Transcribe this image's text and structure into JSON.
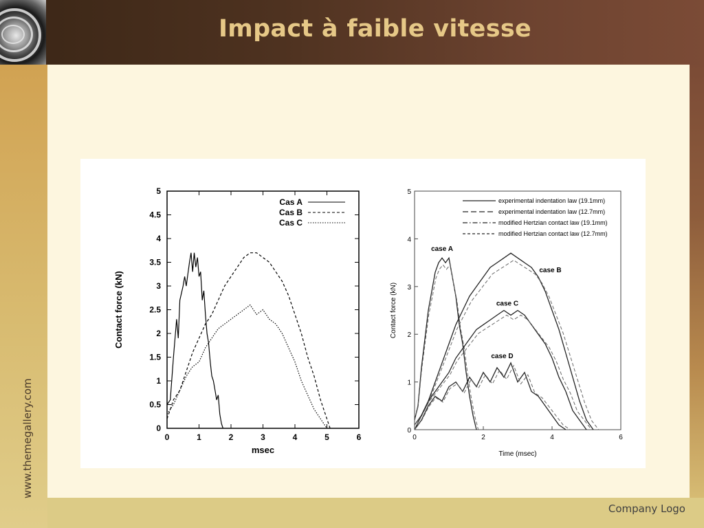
{
  "slide": {
    "title": "Impact à faible vitesse",
    "website": "www.themegallery.com",
    "company_logo": "Company Logo"
  },
  "colors": {
    "header": "#4e3220",
    "title": "#e6c887",
    "content_bg": "#fdf6df",
    "side": "#d8bb70"
  },
  "chart_data": [
    {
      "type": "line",
      "title": "",
      "xlabel": "msec",
      "ylabel": "Contact force (kN)",
      "xlim": [
        0,
        6
      ],
      "ylim": [
        0,
        5
      ],
      "x_ticks": [
        "0",
        "1",
        "2",
        "3",
        "4",
        "5",
        "6"
      ],
      "y_ticks": [
        "0",
        "0.5",
        "1",
        "1.5",
        "2",
        "2.5",
        "3",
        "3.5",
        "4",
        "4.5",
        "5"
      ],
      "legend_position": "top-right",
      "series": [
        {
          "name": "Cas A",
          "style": "solid",
          "x": [
            0,
            0.1,
            0.2,
            0.3,
            0.35,
            0.4,
            0.5,
            0.55,
            0.6,
            0.7,
            0.75,
            0.8,
            0.85,
            0.9,
            0.95,
            1.0,
            1.05,
            1.1,
            1.15,
            1.2,
            1.25,
            1.3,
            1.35,
            1.4,
            1.45,
            1.5,
            1.55,
            1.6,
            1.65,
            1.7,
            1.75
          ],
          "y": [
            0.5,
            0.6,
            1.5,
            2.3,
            1.9,
            2.7,
            3.0,
            3.2,
            3.0,
            3.5,
            3.7,
            3.3,
            3.7,
            3.4,
            3.6,
            3.2,
            3.3,
            2.7,
            2.9,
            2.4,
            2.0,
            1.8,
            1.4,
            1.1,
            1.0,
            0.8,
            0.6,
            0.7,
            0.3,
            0.1,
            0.0
          ]
        },
        {
          "name": "Cas B",
          "style": "dashed",
          "x": [
            0,
            0.2,
            0.4,
            0.6,
            0.8,
            1.0,
            1.2,
            1.4,
            1.6,
            1.8,
            2.0,
            2.2,
            2.4,
            2.6,
            2.8,
            3.0,
            3.2,
            3.4,
            3.6,
            3.8,
            4.0,
            4.2,
            4.4,
            4.6,
            4.8,
            5.0,
            5.1
          ],
          "y": [
            0.2,
            0.6,
            0.8,
            1.2,
            1.6,
            1.9,
            2.2,
            2.4,
            2.7,
            3.0,
            3.2,
            3.4,
            3.6,
            3.7,
            3.7,
            3.6,
            3.5,
            3.3,
            3.1,
            2.8,
            2.4,
            2.0,
            1.5,
            1.1,
            0.6,
            0.2,
            0.0
          ]
        },
        {
          "name": "Cas C",
          "style": "dotted",
          "x": [
            0,
            0.2,
            0.4,
            0.6,
            0.8,
            1.0,
            1.2,
            1.4,
            1.6,
            1.8,
            2.0,
            2.2,
            2.4,
            2.6,
            2.8,
            3.0,
            3.2,
            3.4,
            3.6,
            3.8,
            4.0,
            4.2,
            4.4,
            4.6,
            4.8,
            5.0
          ],
          "y": [
            0.3,
            0.5,
            0.8,
            1.1,
            1.3,
            1.4,
            1.7,
            1.9,
            2.1,
            2.2,
            2.3,
            2.4,
            2.5,
            2.6,
            2.4,
            2.5,
            2.3,
            2.2,
            2.0,
            1.7,
            1.4,
            1.0,
            0.7,
            0.4,
            0.2,
            0.0
          ]
        }
      ]
    },
    {
      "type": "line",
      "title": "",
      "xlabel": "Time (msec)",
      "ylabel": "Contact force (kN)",
      "xlim": [
        0,
        6
      ],
      "ylim": [
        0,
        5
      ],
      "x_ticks": [
        "0",
        "2",
        "4",
        "6"
      ],
      "y_ticks": [
        "0",
        "1",
        "2",
        "3",
        "4",
        "5"
      ],
      "legend_position": "top-right",
      "legend": [
        {
          "name": "experimental indentation law (19.1mm)",
          "style": "solid"
        },
        {
          "name": "experimental indentation law (12.7mm)",
          "style": "longdash"
        },
        {
          "name": "modified Hertzian contact law (19.1mm)",
          "style": "dashdot"
        },
        {
          "name": "modified Hertzian contact law (12.7mm)",
          "style": "dashed"
        }
      ],
      "annotations": [
        "case A",
        "case B",
        "case C",
        "case D"
      ],
      "series": [
        {
          "name": "case A",
          "x": [
            0,
            0.1,
            0.2,
            0.3,
            0.4,
            0.5,
            0.6,
            0.7,
            0.8,
            0.9,
            1.0,
            1.1,
            1.2,
            1.3,
            1.4,
            1.5,
            1.6,
            1.7,
            1.8
          ],
          "y": [
            0.2,
            0.5,
            1.3,
            1.9,
            2.5,
            2.9,
            3.3,
            3.5,
            3.6,
            3.5,
            3.6,
            3.2,
            2.8,
            2.2,
            1.8,
            1.2,
            0.7,
            0.3,
            0.0
          ]
        },
        {
          "name": "case B",
          "x": [
            0,
            0.2,
            0.4,
            0.6,
            0.8,
            1.0,
            1.2,
            1.4,
            1.6,
            1.8,
            2.0,
            2.2,
            2.4,
            2.6,
            2.8,
            3.0,
            3.2,
            3.4,
            3.6,
            3.8,
            4.0,
            4.2,
            4.4,
            4.6,
            4.8,
            5.0,
            5.2
          ],
          "y": [
            0.1,
            0.3,
            0.6,
            1.0,
            1.4,
            1.8,
            2.2,
            2.5,
            2.8,
            3.0,
            3.2,
            3.4,
            3.5,
            3.6,
            3.7,
            3.6,
            3.5,
            3.4,
            3.2,
            2.9,
            2.5,
            2.1,
            1.6,
            1.1,
            0.6,
            0.2,
            0.0
          ]
        },
        {
          "name": "case C",
          "x": [
            0,
            0.2,
            0.4,
            0.6,
            0.8,
            1.0,
            1.2,
            1.4,
            1.6,
            1.8,
            2.0,
            2.2,
            2.4,
            2.6,
            2.8,
            3.0,
            3.2,
            3.4,
            3.6,
            3.8,
            4.0,
            4.2,
            4.4,
            4.6,
            4.8,
            5.0
          ],
          "y": [
            0.0,
            0.3,
            0.6,
            0.8,
            1.0,
            1.2,
            1.5,
            1.7,
            1.9,
            2.1,
            2.2,
            2.3,
            2.4,
            2.5,
            2.4,
            2.5,
            2.4,
            2.2,
            2.0,
            1.8,
            1.5,
            1.1,
            0.8,
            0.4,
            0.2,
            0.0
          ]
        },
        {
          "name": "case D",
          "x": [
            0,
            0.2,
            0.4,
            0.6,
            0.8,
            1.0,
            1.2,
            1.4,
            1.6,
            1.8,
            2.0,
            2.2,
            2.4,
            2.6,
            2.8,
            3.0,
            3.2,
            3.4,
            3.6,
            3.8,
            4.0,
            4.2,
            4.4
          ],
          "y": [
            0.0,
            0.2,
            0.5,
            0.7,
            0.6,
            0.9,
            1.0,
            0.8,
            1.1,
            0.9,
            1.2,
            1.0,
            1.3,
            1.1,
            1.4,
            1.0,
            1.2,
            0.8,
            0.7,
            0.5,
            0.3,
            0.1,
            0.0
          ]
        }
      ]
    }
  ]
}
